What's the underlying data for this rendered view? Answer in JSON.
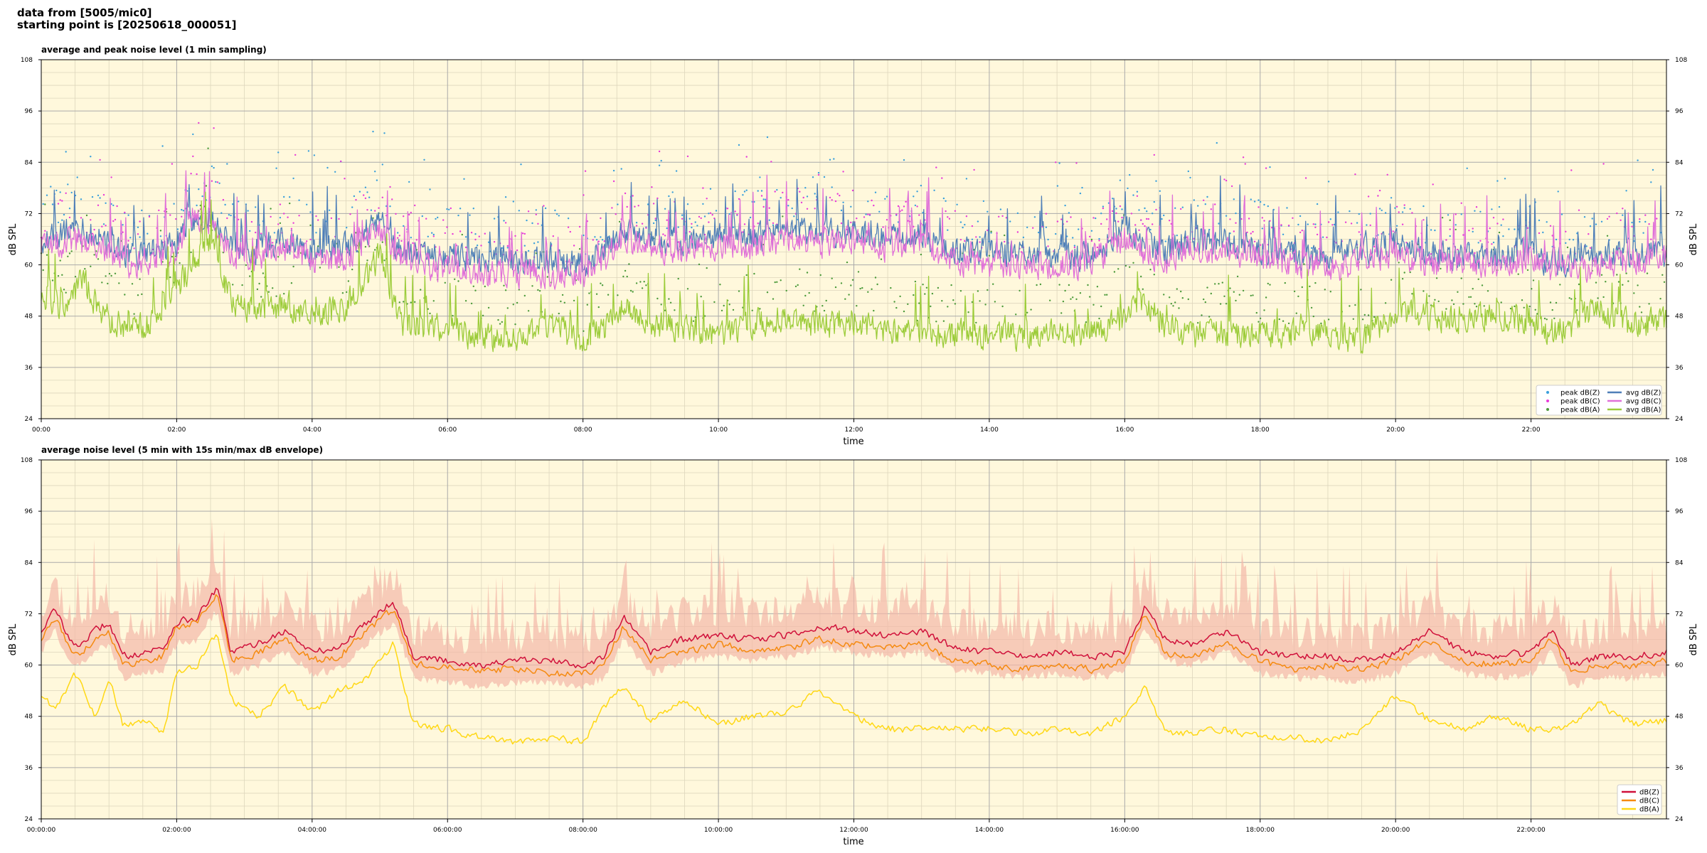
{
  "header": {
    "line1": "data from [5005/mic0]",
    "line2": "starting point is [20250618_000051]"
  },
  "colors": {
    "background": "#fff8dc",
    "grid_major": "#aaaaaa",
    "grid_minor": "#ddd6bc",
    "peak_z": "#3a9fdb",
    "peak_c": "#e83ad8",
    "peak_a": "#4c9a3a",
    "avg_z": "#4f7fb8",
    "avg_c": "#e070d8",
    "avg_a": "#9ccc3a",
    "env": "#f3b8a8",
    "z2": "#d0103a",
    "c2": "#f58a10",
    "a2": "#ffd814"
  },
  "chart_data": [
    {
      "type": "line",
      "title": "average and peak noise level (1 min sampling)",
      "xlabel": "time",
      "ylabel": "dB SPL",
      "xlim": [
        0,
        24
      ],
      "ylim": [
        24,
        108
      ],
      "yticks": [
        "24",
        "36",
        "48",
        "60",
        "72",
        "84",
        "96",
        "108"
      ],
      "xticks": [
        "00:00",
        "02:00",
        "04:00",
        "06:00",
        "08:00",
        "10:00",
        "12:00",
        "14:00",
        "16:00",
        "18:00",
        "20:00",
        "22:00"
      ],
      "grid": true,
      "legend_position": "bottom-right",
      "legend": [
        "peak dB(Z)",
        "peak dB(C)",
        "peak dB(A)",
        "avg dB(Z)",
        "avg dB(C)",
        "avg dB(A)"
      ],
      "series": [
        {
          "name": "avg dB(Z)",
          "hours": [
            0,
            0.5,
            1,
            1.3,
            1.6,
            2,
            2.2,
            2.5,
            2.8,
            3.2,
            3.6,
            4,
            4.5,
            5,
            5.3,
            5.6,
            6,
            6.5,
            7,
            7.5,
            8,
            8.3,
            8.6,
            9,
            9.5,
            10,
            10.5,
            11,
            11.5,
            12,
            12.5,
            13,
            13.5,
            14,
            14.5,
            15,
            15.5,
            16,
            16.3,
            16.6,
            17,
            17.5,
            18,
            18.5,
            19,
            19.5,
            20,
            20.5,
            21,
            21.5,
            22,
            22.2,
            22.5,
            23,
            23.5,
            24
          ],
          "values": [
            66,
            68,
            65,
            62,
            63,
            65,
            71,
            72,
            64,
            63,
            66,
            63,
            64,
            70,
            63,
            62,
            62,
            61,
            61,
            61,
            60,
            63,
            68,
            66,
            65,
            67,
            66,
            68,
            67,
            68,
            66,
            67,
            63,
            63,
            62,
            62,
            62,
            69,
            65,
            63,
            66,
            65,
            64,
            62,
            61,
            63,
            65,
            62,
            62,
            62,
            64,
            60,
            61,
            62,
            63,
            62
          ]
        },
        {
          "name": "avg dB(C)",
          "hours": [
            0,
            0.5,
            1,
            1.3,
            1.6,
            2,
            2.2,
            2.5,
            2.8,
            3.2,
            3.6,
            4,
            4.5,
            5,
            5.3,
            5.6,
            6,
            6.5,
            7,
            7.5,
            8,
            8.3,
            8.6,
            9,
            9.5,
            10,
            10.5,
            11,
            11.5,
            12,
            12.5,
            13,
            13.5,
            14,
            14.5,
            15,
            15.5,
            16,
            16.3,
            16.6,
            17,
            17.5,
            18,
            18.5,
            19,
            19.5,
            20,
            20.5,
            21,
            21.5,
            22,
            22.2,
            22.5,
            23,
            23.5,
            24
          ],
          "values": [
            64,
            66,
            63,
            60,
            61,
            63,
            70,
            71,
            62,
            61,
            64,
            61,
            62,
            68,
            61,
            60,
            59,
            58,
            58,
            58,
            58,
            61,
            66,
            64,
            63,
            65,
            64,
            66,
            65,
            66,
            64,
            65,
            61,
            60,
            60,
            60,
            60,
            67,
            63,
            61,
            64,
            63,
            62,
            60,
            59,
            61,
            63,
            60,
            60,
            60,
            62,
            58,
            59,
            60,
            61,
            61
          ]
        },
        {
          "name": "avg dB(A)",
          "hours": [
            0,
            0.3,
            0.6,
            1,
            1.3,
            1.6,
            2,
            2.2,
            2.5,
            2.8,
            3.2,
            3.6,
            4,
            4.5,
            5,
            5.3,
            5.6,
            6,
            6.5,
            7,
            7.5,
            8,
            8.3,
            8.6,
            9,
            9.5,
            10,
            10.5,
            11,
            11.5,
            12,
            12.5,
            13,
            13.5,
            14,
            14.5,
            15,
            15.5,
            16,
            16.3,
            16.6,
            17,
            17.5,
            18,
            18.5,
            19,
            19.5,
            20,
            20.5,
            21,
            21.5,
            22,
            22.2,
            22.5,
            23,
            23.5,
            24
          ],
          "values": [
            53,
            50,
            56,
            47,
            46,
            46,
            54,
            60,
            66,
            52,
            48,
            51,
            48,
            50,
            62,
            46,
            45,
            45,
            43,
            43,
            46,
            42,
            45,
            50,
            46,
            45,
            44,
            46,
            48,
            46,
            47,
            45,
            44,
            44,
            44,
            43,
            44,
            44,
            48,
            52,
            46,
            43,
            44,
            44,
            44,
            44,
            42,
            49,
            48,
            47,
            48,
            47,
            44,
            45,
            50,
            46,
            47
          ]
        }
      ]
    },
    {
      "type": "line",
      "title": "average noise level (5 min with 15s min/max dB envelope)",
      "xlabel": "time",
      "ylabel": "dB SPL",
      "xlim": [
        0,
        24
      ],
      "ylim": [
        24,
        108
      ],
      "yticks": [
        "24",
        "36",
        "48",
        "60",
        "72",
        "84",
        "96",
        "108"
      ],
      "xticks": [
        "00:00:00",
        "02:00:00",
        "04:00:00",
        "06:00:00",
        "08:00:00",
        "10:00:00",
        "12:00:00",
        "14:00:00",
        "16:00:00",
        "18:00:00",
        "20:00:00",
        "22:00:00"
      ],
      "grid": true,
      "legend_position": "bottom-right",
      "legend": [
        "dB(Z)",
        "dB(C)",
        "dB(A)"
      ],
      "series": [
        {
          "name": "dB(Z)",
          "hours": [
            0,
            0.2,
            0.5,
            0.8,
            1,
            1.2,
            1.5,
            1.8,
            2,
            2.3,
            2.6,
            2.8,
            3.2,
            3.6,
            4,
            4.4,
            4.8,
            5.2,
            5.5,
            6,
            6.5,
            7,
            7.5,
            8,
            8.3,
            8.6,
            9,
            9.5,
            10,
            10.5,
            11,
            11.5,
            12,
            12.5,
            13,
            13.5,
            14,
            14.5,
            15,
            15.5,
            16,
            16.3,
            16.6,
            17,
            17.5,
            18,
            18.5,
            19,
            19.5,
            20,
            20.5,
            21,
            21.5,
            22,
            22.3,
            22.6,
            23,
            23.5,
            24
          ],
          "values": [
            68,
            73,
            64,
            68,
            70,
            62,
            63,
            64,
            70,
            71,
            78,
            63,
            65,
            68,
            63,
            64,
            70,
            75,
            62,
            61,
            60,
            61,
            61,
            60,
            62,
            71,
            63,
            66,
            67,
            66,
            67,
            69,
            68,
            67,
            68,
            64,
            63,
            62,
            63,
            62,
            63,
            74,
            66,
            65,
            68,
            63,
            62,
            62,
            61,
            63,
            68,
            63,
            62,
            63,
            68,
            60,
            62,
            62,
            63
          ]
        },
        {
          "name": "dB(C)",
          "hours": [
            0,
            0.2,
            0.5,
            0.8,
            1,
            1.2,
            1.5,
            1.8,
            2,
            2.3,
            2.6,
            2.8,
            3.2,
            3.6,
            4,
            4.4,
            4.8,
            5.2,
            5.5,
            6,
            6.5,
            7,
            7.5,
            8,
            8.3,
            8.6,
            9,
            9.5,
            10,
            10.5,
            11,
            11.5,
            12,
            12.5,
            13,
            13.5,
            14,
            14.5,
            15,
            15.5,
            16,
            16.3,
            16.6,
            17,
            17.5,
            18,
            18.5,
            19,
            19.5,
            20,
            20.5,
            21,
            21.5,
            22,
            22.3,
            22.6,
            23,
            23.5,
            24
          ],
          "values": [
            66,
            71,
            62,
            66,
            68,
            60,
            61,
            62,
            69,
            70,
            77,
            61,
            63,
            66,
            61,
            62,
            68,
            73,
            60,
            60,
            59,
            59,
            58,
            58,
            60,
            69,
            61,
            63,
            65,
            63,
            64,
            66,
            65,
            64,
            65,
            61,
            60,
            59,
            60,
            59,
            61,
            72,
            63,
            62,
            65,
            61,
            59,
            60,
            59,
            61,
            66,
            61,
            60,
            61,
            66,
            58,
            60,
            60,
            61
          ]
        },
        {
          "name": "dB(A)",
          "hours": [
            0,
            0.2,
            0.5,
            0.8,
            1,
            1.2,
            1.5,
            1.8,
            2,
            2.3,
            2.6,
            2.8,
            3.2,
            3.6,
            4,
            4.4,
            4.8,
            5.2,
            5.5,
            6,
            6.5,
            7,
            7.5,
            8,
            8.3,
            8.6,
            9,
            9.5,
            10,
            10.5,
            11,
            11.5,
            12,
            12.5,
            13,
            13.5,
            14,
            14.5,
            15,
            15.5,
            16,
            16.3,
            16.6,
            17,
            17.5,
            18,
            18.5,
            19,
            19.5,
            20,
            20.5,
            21,
            21.5,
            22,
            22.3,
            22.6,
            23,
            23.5,
            24
          ],
          "values": [
            53,
            50,
            58,
            48,
            57,
            46,
            47,
            44,
            58,
            60,
            68,
            52,
            48,
            55,
            49,
            54,
            57,
            65,
            46,
            45,
            43,
            42,
            43,
            42,
            50,
            55,
            47,
            52,
            46,
            48,
            49,
            54,
            48,
            45,
            45,
            45,
            45,
            44,
            45,
            44,
            48,
            55,
            44,
            44,
            45,
            43,
            43,
            42,
            45,
            53,
            47,
            45,
            48,
            45,
            45,
            46,
            51,
            46,
            47
          ]
        }
      ]
    }
  ]
}
